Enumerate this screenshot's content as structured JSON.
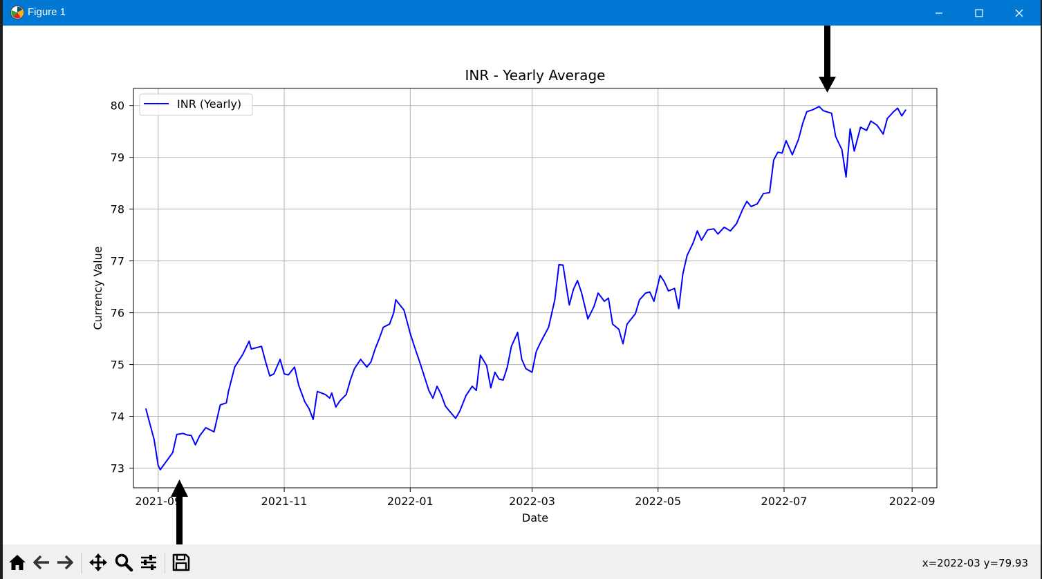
{
  "window": {
    "title": "Figure 1",
    "controls": [
      "minimize",
      "maximize",
      "close"
    ]
  },
  "toolbar": {
    "buttons": [
      {
        "name": "home",
        "icon": "home-icon"
      },
      {
        "name": "back",
        "icon": "arrow-left-icon"
      },
      {
        "name": "forward",
        "icon": "arrow-right-icon"
      },
      {
        "name": "pan",
        "icon": "move-icon"
      },
      {
        "name": "zoom",
        "icon": "magnifier-icon"
      },
      {
        "name": "configure-subplots",
        "icon": "sliders-icon"
      },
      {
        "name": "save",
        "icon": "floppy-disk-icon"
      }
    ],
    "coords_text": "x=2022-03 y=79.93"
  },
  "chart_data": {
    "type": "line",
    "title": "INR - Yearly Average",
    "xlabel": "Date",
    "ylabel": "Currency Value",
    "x_ticks": [
      "2021-09",
      "2021-11",
      "2022-01",
      "2022-03",
      "2022-05",
      "2022-07",
      "2022-09"
    ],
    "y_ticks": [
      "73",
      "74",
      "75",
      "76",
      "77",
      "78",
      "79",
      "80"
    ],
    "xlim": [
      "2021-08-20",
      "2022-09-13"
    ],
    "ylim": [
      72.62,
      80.33
    ],
    "grid": true,
    "legend_position": "top-left",
    "series": [
      {
        "name": "INR (Yearly)",
        "color": "#0000ff",
        "points": [
          [
            "2021-08-26",
            74.15
          ],
          [
            "2021-08-30",
            73.55
          ],
          [
            "2021-09-01",
            73.05
          ],
          [
            "2021-09-02",
            72.97
          ],
          [
            "2021-09-08",
            73.3
          ],
          [
            "2021-09-10",
            73.65
          ],
          [
            "2021-09-13",
            73.67
          ],
          [
            "2021-09-15",
            73.64
          ],
          [
            "2021-09-17",
            73.63
          ],
          [
            "2021-09-19",
            73.45
          ],
          [
            "2021-09-21",
            73.62
          ],
          [
            "2021-09-24",
            73.78
          ],
          [
            "2021-09-28",
            73.7
          ],
          [
            "2021-10-01",
            74.22
          ],
          [
            "2021-10-04",
            74.26
          ],
          [
            "2021-10-05",
            74.48
          ],
          [
            "2021-10-08",
            74.95
          ],
          [
            "2021-10-12",
            75.2
          ],
          [
            "2021-10-15",
            75.45
          ],
          [
            "2021-10-16",
            75.3
          ],
          [
            "2021-10-21",
            75.35
          ],
          [
            "2021-10-23",
            75.05
          ],
          [
            "2021-10-25",
            74.78
          ],
          [
            "2021-10-27",
            74.82
          ],
          [
            "2021-10-30",
            75.1
          ],
          [
            "2021-11-01",
            74.82
          ],
          [
            "2021-11-03",
            74.8
          ],
          [
            "2021-11-06",
            74.95
          ],
          [
            "2021-11-08",
            74.6
          ],
          [
            "2021-11-11",
            74.28
          ],
          [
            "2021-11-13",
            74.15
          ],
          [
            "2021-11-15",
            73.94
          ],
          [
            "2021-11-17",
            74.48
          ],
          [
            "2021-11-21",
            74.42
          ],
          [
            "2021-11-23",
            74.35
          ],
          [
            "2021-11-24",
            74.45
          ],
          [
            "2021-11-26",
            74.18
          ],
          [
            "2021-11-28",
            74.3
          ],
          [
            "2021-11-30",
            74.38
          ],
          [
            "2021-12-01",
            74.42
          ],
          [
            "2021-12-03",
            74.7
          ],
          [
            "2021-12-05",
            74.92
          ],
          [
            "2021-12-08",
            75.1
          ],
          [
            "2021-12-11",
            74.95
          ],
          [
            "2021-12-13",
            75.05
          ],
          [
            "2021-12-15",
            75.3
          ],
          [
            "2021-12-17",
            75.5
          ],
          [
            "2021-12-19",
            75.72
          ],
          [
            "2021-12-22",
            75.78
          ],
          [
            "2021-12-24",
            76.0
          ],
          [
            "2021-12-25",
            76.25
          ],
          [
            "2021-12-29",
            76.05
          ],
          [
            "2022-01-01",
            75.6
          ],
          [
            "2022-01-03",
            75.35
          ],
          [
            "2022-01-06",
            75.0
          ],
          [
            "2022-01-10",
            74.5
          ],
          [
            "2022-01-12",
            74.35
          ],
          [
            "2022-01-14",
            74.58
          ],
          [
            "2022-01-16",
            74.42
          ],
          [
            "2022-01-18",
            74.2
          ],
          [
            "2022-01-20",
            74.1
          ],
          [
            "2022-01-23",
            73.96
          ],
          [
            "2022-01-25",
            74.1
          ],
          [
            "2022-01-28",
            74.4
          ],
          [
            "2022-01-31",
            74.58
          ],
          [
            "2022-02-02",
            74.5
          ],
          [
            "2022-02-04",
            75.18
          ],
          [
            "2022-02-07",
            74.98
          ],
          [
            "2022-02-09",
            74.55
          ],
          [
            "2022-02-11",
            74.85
          ],
          [
            "2022-02-13",
            74.72
          ],
          [
            "2022-02-15",
            74.7
          ],
          [
            "2022-02-17",
            74.95
          ],
          [
            "2022-02-19",
            75.35
          ],
          [
            "2022-02-22",
            75.62
          ],
          [
            "2022-02-24",
            75.1
          ],
          [
            "2022-02-26",
            74.92
          ],
          [
            "2022-03-01",
            74.85
          ],
          [
            "2022-03-03",
            75.25
          ],
          [
            "2022-03-05",
            75.42
          ],
          [
            "2022-03-09",
            75.72
          ],
          [
            "2022-03-12",
            76.25
          ],
          [
            "2022-03-14",
            76.93
          ],
          [
            "2022-03-16",
            76.92
          ],
          [
            "2022-03-19",
            76.15
          ],
          [
            "2022-03-21",
            76.45
          ],
          [
            "2022-03-23",
            76.62
          ],
          [
            "2022-03-25",
            76.38
          ],
          [
            "2022-03-28",
            75.88
          ],
          [
            "2022-03-31",
            76.12
          ],
          [
            "2022-04-02",
            76.38
          ],
          [
            "2022-04-05",
            76.22
          ],
          [
            "2022-04-07",
            76.28
          ],
          [
            "2022-04-09",
            75.78
          ],
          [
            "2022-04-12",
            75.68
          ],
          [
            "2022-04-14",
            75.4
          ],
          [
            "2022-04-16",
            75.78
          ],
          [
            "2022-04-20",
            75.98
          ],
          [
            "2022-04-22",
            76.25
          ],
          [
            "2022-04-25",
            76.38
          ],
          [
            "2022-04-27",
            76.4
          ],
          [
            "2022-04-29",
            76.22
          ],
          [
            "2022-05-02",
            76.72
          ],
          [
            "2022-05-04",
            76.6
          ],
          [
            "2022-05-06",
            76.42
          ],
          [
            "2022-05-09",
            76.47
          ],
          [
            "2022-05-11",
            76.08
          ],
          [
            "2022-05-13",
            76.75
          ],
          [
            "2022-05-15",
            77.1
          ],
          [
            "2022-05-18",
            77.35
          ],
          [
            "2022-05-20",
            77.58
          ],
          [
            "2022-05-22",
            77.4
          ],
          [
            "2022-05-25",
            77.6
          ],
          [
            "2022-05-28",
            77.62
          ],
          [
            "2022-05-30",
            77.52
          ],
          [
            "2022-06-02",
            77.65
          ],
          [
            "2022-06-05",
            77.58
          ],
          [
            "2022-06-08",
            77.72
          ],
          [
            "2022-06-11",
            78.0
          ],
          [
            "2022-06-13",
            78.15
          ],
          [
            "2022-06-15",
            78.05
          ],
          [
            "2022-06-18",
            78.1
          ],
          [
            "2022-06-21",
            78.3
          ],
          [
            "2022-06-24",
            78.32
          ],
          [
            "2022-06-26",
            78.95
          ],
          [
            "2022-06-28",
            79.1
          ],
          [
            "2022-06-30",
            79.08
          ],
          [
            "2022-07-02",
            79.32
          ],
          [
            "2022-07-05",
            79.05
          ],
          [
            "2022-07-08",
            79.35
          ],
          [
            "2022-07-10",
            79.65
          ],
          [
            "2022-07-12",
            79.88
          ],
          [
            "2022-07-15",
            79.92
          ],
          [
            "2022-07-18",
            79.98
          ],
          [
            "2022-07-20",
            79.9
          ],
          [
            "2022-07-24",
            79.85
          ],
          [
            "2022-07-26",
            79.4
          ],
          [
            "2022-07-29",
            79.15
          ],
          [
            "2022-07-31",
            78.62
          ],
          [
            "2022-08-02",
            79.55
          ],
          [
            "2022-08-04",
            79.12
          ],
          [
            "2022-08-07",
            79.58
          ],
          [
            "2022-08-10",
            79.52
          ],
          [
            "2022-08-12",
            79.7
          ],
          [
            "2022-08-15",
            79.62
          ],
          [
            "2022-08-18",
            79.45
          ],
          [
            "2022-08-20",
            79.75
          ],
          [
            "2022-08-23",
            79.88
          ],
          [
            "2022-08-25",
            79.95
          ],
          [
            "2022-08-27",
            79.8
          ],
          [
            "2022-08-29",
            79.92
          ]
        ]
      }
    ]
  }
}
